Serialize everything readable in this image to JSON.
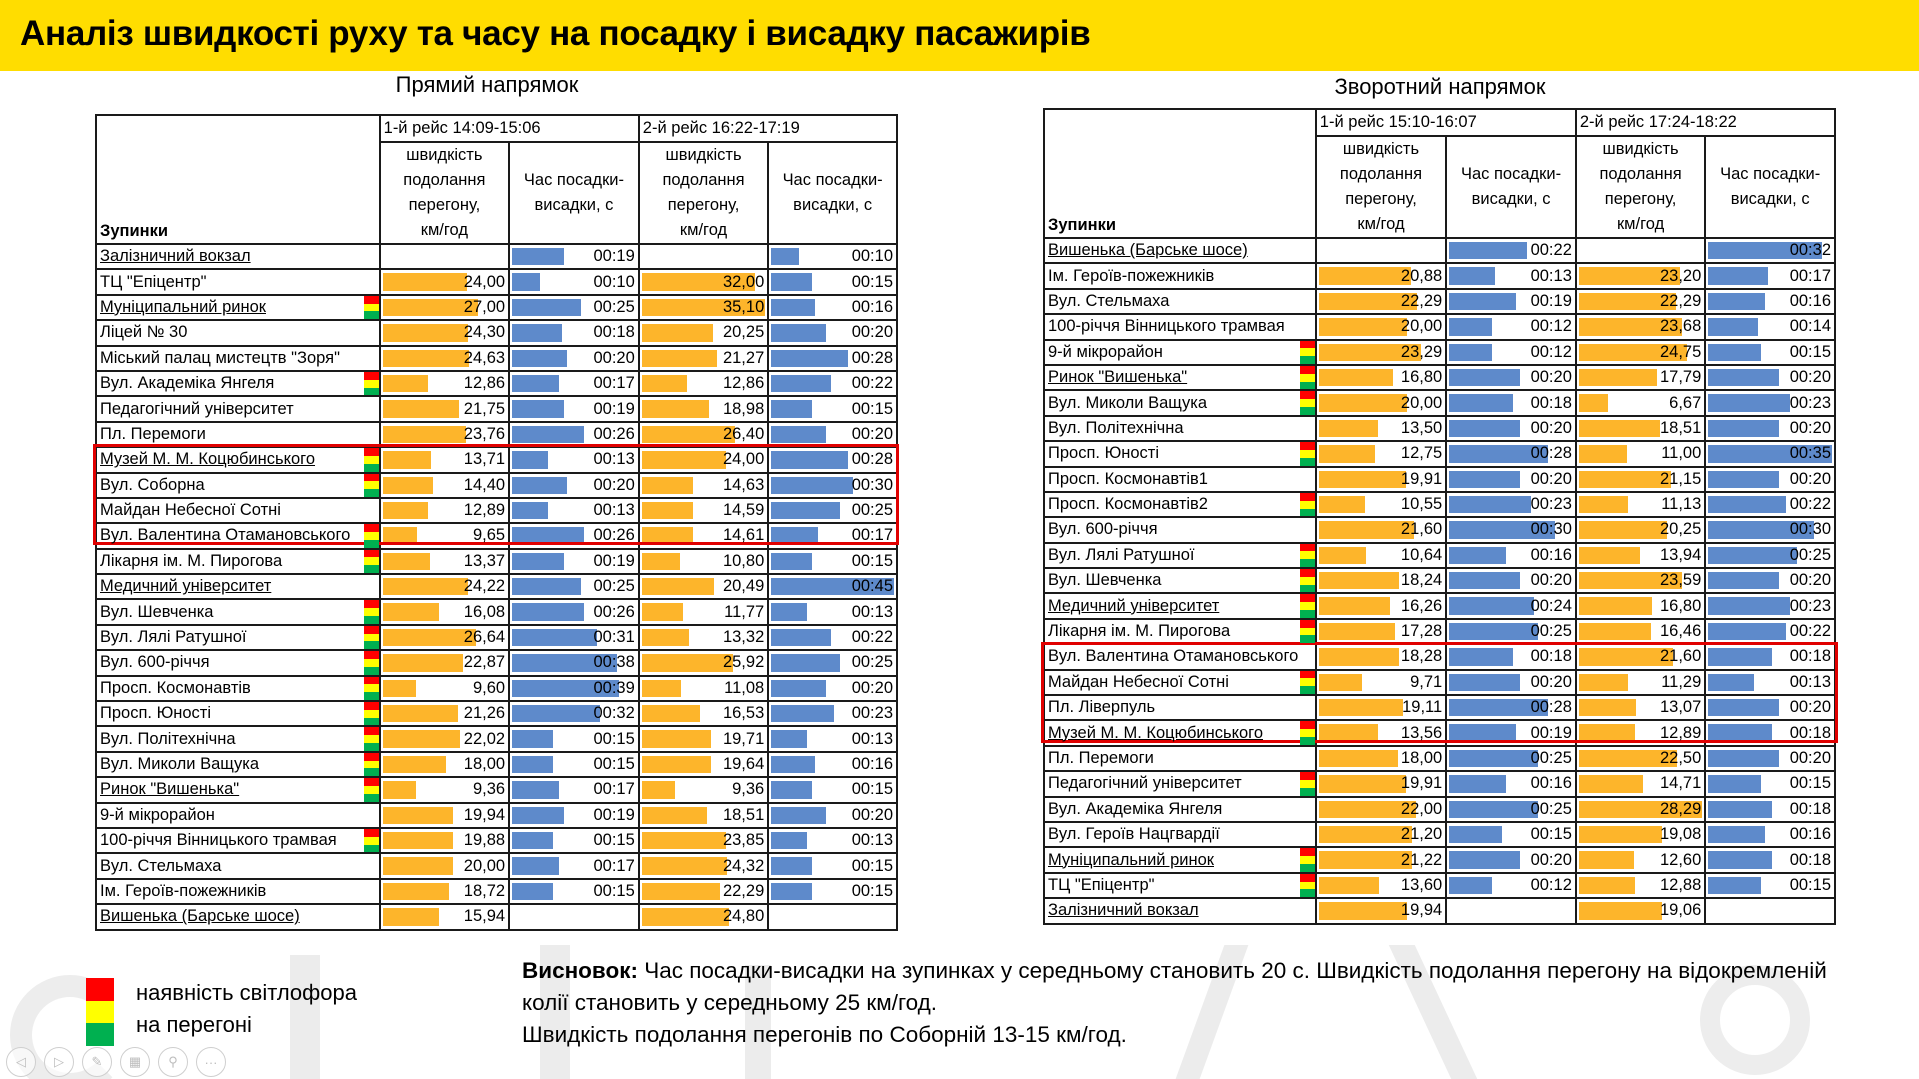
{
  "header": {
    "title": "Аналіз швидкості руху та часу на посадку і висадку пасажирів"
  },
  "colors": {
    "title_bg": "#FFDD00",
    "speed_bar": "#FDB52B",
    "time_bar": "#5E8ACB",
    "highlight_box": "#E00000",
    "traffic_red": "#FF0000",
    "traffic_yellow": "#FFFF00",
    "traffic_green": "#00B050"
  },
  "column_headers": {
    "stops": "Зупинки",
    "speed": [
      "швидкість",
      "подолання",
      "перегону,",
      "км/год"
    ],
    "time": [
      "Час посадки-",
      "висадки, с"
    ]
  },
  "forward": {
    "caption": "Прямий напрямок",
    "trip1": "1-й рейс 14:09-15:06",
    "trip2": "2-й рейс 16:22-17:19",
    "rows": [
      {
        "stop": "Залізничний вокзал",
        "u": true,
        "tl": false,
        "s1": "",
        "t1": "00:19",
        "s2": "",
        "t2": "00:10"
      },
      {
        "stop": "ТЦ \"Епіцентр\"",
        "u": false,
        "tl": false,
        "s1": "24,00",
        "t1": "00:10",
        "s2": "32,00",
        "t2": "00:15"
      },
      {
        "stop": "Муніципальний ринок",
        "u": true,
        "tl": true,
        "s1": "27,00",
        "t1": "00:25",
        "s2": "35,10",
        "t2": "00:16"
      },
      {
        "stop": "Ліцей № 30",
        "u": false,
        "tl": false,
        "s1": "24,30",
        "t1": "00:18",
        "s2": "20,25",
        "t2": "00:20"
      },
      {
        "stop": "Міський палац мистецтв \"Зоря\"",
        "u": false,
        "tl": false,
        "s1": "24,63",
        "t1": "00:20",
        "s2": "21,27",
        "t2": "00:28"
      },
      {
        "stop": "Вул. Академіка Янгеля",
        "u": false,
        "tl": true,
        "s1": "12,86",
        "t1": "00:17",
        "s2": "12,86",
        "t2": "00:22"
      },
      {
        "stop": "Педагогічний університет",
        "u": false,
        "tl": false,
        "s1": "21,75",
        "t1": "00:19",
        "s2": "18,98",
        "t2": "00:15"
      },
      {
        "stop": "Пл. Перемоги",
        "u": false,
        "tl": false,
        "s1": "23,76",
        "t1": "00:26",
        "s2": "26,40",
        "t2": "00:20"
      },
      {
        "stop": "Музей М. М. Коцюбинського",
        "u": true,
        "tl": true,
        "s1": "13,71",
        "t1": "00:13",
        "s2": "24,00",
        "t2": "00:28"
      },
      {
        "stop": "Вул. Соборна",
        "u": false,
        "tl": true,
        "s1": "14,40",
        "t1": "00:20",
        "s2": "14,63",
        "t2": "00:30"
      },
      {
        "stop": "Майдан Небесної Сотні",
        "u": false,
        "tl": false,
        "s1": "12,89",
        "t1": "00:13",
        "s2": "14,59",
        "t2": "00:25"
      },
      {
        "stop": "Вул. Валентина Отамановського",
        "u": false,
        "tl": true,
        "s1": "9,65",
        "t1": "00:26",
        "s2": "14,61",
        "t2": "00:17"
      },
      {
        "stop": "Лікарня ім. М. Пирогова",
        "u": false,
        "tl": true,
        "s1": "13,37",
        "t1": "00:19",
        "s2": "10,80",
        "t2": "00:15"
      },
      {
        "stop": "Медичний університет",
        "u": true,
        "tl": false,
        "s1": "24,22",
        "t1": "00:25",
        "s2": "20,49",
        "t2": "00:45"
      },
      {
        "stop": "Вул. Шевченка",
        "u": false,
        "tl": true,
        "s1": "16,08",
        "t1": "00:26",
        "s2": "11,77",
        "t2": "00:13"
      },
      {
        "stop": "Вул. Лялі Ратушної",
        "u": false,
        "tl": true,
        "s1": "26,64",
        "t1": "00:31",
        "s2": "13,32",
        "t2": "00:22"
      },
      {
        "stop": "Вул. 600-річчя",
        "u": false,
        "tl": true,
        "s1": "22,87",
        "t1": "00:38",
        "s2": "25,92",
        "t2": "00:25"
      },
      {
        "stop": "Просп. Космонавтів",
        "u": false,
        "tl": true,
        "s1": "9,60",
        "t1": "00:39",
        "s2": "11,08",
        "t2": "00:20"
      },
      {
        "stop": "Просп. Юності",
        "u": false,
        "tl": true,
        "s1": "21,26",
        "t1": "00:32",
        "s2": "16,53",
        "t2": "00:23"
      },
      {
        "stop": "Вул. Політехнічна",
        "u": false,
        "tl": true,
        "s1": "22,02",
        "t1": "00:15",
        "s2": "19,71",
        "t2": "00:13"
      },
      {
        "stop": "Вул. Миколи Ващука",
        "u": false,
        "tl": true,
        "s1": "18,00",
        "t1": "00:15",
        "s2": "19,64",
        "t2": "00:16"
      },
      {
        "stop": "Ринок \"Вишенька\"",
        "u": true,
        "tl": true,
        "s1": "9,36",
        "t1": "00:17",
        "s2": "9,36",
        "t2": "00:15"
      },
      {
        "stop": "9-й мікрорайон",
        "u": false,
        "tl": false,
        "s1": "19,94",
        "t1": "00:19",
        "s2": "18,51",
        "t2": "00:20"
      },
      {
        "stop": "100-річчя Вінницького трамвая",
        "u": false,
        "tl": true,
        "s1": "19,88",
        "t1": "00:15",
        "s2": "23,85",
        "t2": "00:13"
      },
      {
        "stop": "Вул. Стельмаха",
        "u": false,
        "tl": false,
        "s1": "20,00",
        "t1": "00:17",
        "s2": "24,32",
        "t2": "00:15"
      },
      {
        "stop": "Ім. Героїв-пожежників",
        "u": false,
        "tl": false,
        "s1": "18,72",
        "t1": "00:15",
        "s2": "22,29",
        "t2": "00:15"
      },
      {
        "stop": "Вишенька (Барське шосе)",
        "u": true,
        "tl": false,
        "s1": "15,94",
        "t1": "",
        "s2": "24,80",
        "t2": ""
      }
    ]
  },
  "reverse": {
    "caption": "Зворотний напрямок",
    "trip1": "1-й рейс 15:10-16:07",
    "trip2": "2-й рейс 17:24-18:22",
    "rows": [
      {
        "stop": "Вишенька (Барське шосе)",
        "u": true,
        "tl": false,
        "s1": "",
        "t1": "00:22",
        "s2": "",
        "t2": "00:32"
      },
      {
        "stop": "Ім. Героїв-пожежників",
        "u": false,
        "tl": false,
        "s1": "20,88",
        "t1": "00:13",
        "s2": "23,20",
        "t2": "00:17"
      },
      {
        "stop": "Вул. Стельмаха",
        "u": false,
        "tl": false,
        "s1": "22,29",
        "t1": "00:19",
        "s2": "22,29",
        "t2": "00:16"
      },
      {
        "stop": "100-річчя Вінницького трамвая",
        "u": false,
        "tl": false,
        "s1": "20,00",
        "t1": "00:12",
        "s2": "23,68",
        "t2": "00:14"
      },
      {
        "stop": "9-й мікрорайон",
        "u": false,
        "tl": true,
        "s1": "23,29",
        "t1": "00:12",
        "s2": "24,75",
        "t2": "00:15"
      },
      {
        "stop": "Ринок \"Вишенька\"",
        "u": true,
        "tl": true,
        "s1": "16,80",
        "t1": "00:20",
        "s2": "17,79",
        "t2": "00:20"
      },
      {
        "stop": "Вул. Миколи Ващука",
        "u": false,
        "tl": true,
        "s1": "20,00",
        "t1": "00:18",
        "s2": "6,67",
        "t2": "00:23"
      },
      {
        "stop": "Вул. Політехнічна",
        "u": false,
        "tl": false,
        "s1": "13,50",
        "t1": "00:20",
        "s2": "18,51",
        "t2": "00:20"
      },
      {
        "stop": "Просп. Юності",
        "u": false,
        "tl": true,
        "s1": "12,75",
        "t1": "00:28",
        "s2": "11,00",
        "t2": "00:35"
      },
      {
        "stop": "Просп. Космонавтів1",
        "u": false,
        "tl": false,
        "s1": "19,91",
        "t1": "00:20",
        "s2": "21,15",
        "t2": "00:20"
      },
      {
        "stop": "Просп. Космонавтів2",
        "u": false,
        "tl": true,
        "s1": "10,55",
        "t1": "00:23",
        "s2": "11,13",
        "t2": "00:22"
      },
      {
        "stop": "Вул. 600-річчя",
        "u": false,
        "tl": false,
        "s1": "21,60",
        "t1": "00:30",
        "s2": "20,25",
        "t2": "00:30"
      },
      {
        "stop": "Вул. Лялі Ратушної",
        "u": false,
        "tl": true,
        "s1": "10,64",
        "t1": "00:16",
        "s2": "13,94",
        "t2": "00:25"
      },
      {
        "stop": "Вул. Шевченка",
        "u": false,
        "tl": true,
        "s1": "18,24",
        "t1": "00:20",
        "s2": "23,59",
        "t2": "00:20"
      },
      {
        "stop": "Медичний університет",
        "u": true,
        "tl": true,
        "s1": "16,26",
        "t1": "00:24",
        "s2": "16,80",
        "t2": "00:23"
      },
      {
        "stop": "Лікарня ім. М. Пирогова",
        "u": false,
        "tl": true,
        "s1": "17,28",
        "t1": "00:25",
        "s2": "16,46",
        "t2": "00:22"
      },
      {
        "stop": "Вул. Валентина Отамановського",
        "u": false,
        "tl": false,
        "s1": "18,28",
        "t1": "00:18",
        "s2": "21,60",
        "t2": "00:18"
      },
      {
        "stop": "Майдан Небесної Сотні",
        "u": false,
        "tl": true,
        "s1": "9,71",
        "t1": "00:20",
        "s2": "11,29",
        "t2": "00:13"
      },
      {
        "stop": "Пл. Ліверпуль",
        "u": false,
        "tl": false,
        "s1": "19,11",
        "t1": "00:28",
        "s2": "13,07",
        "t2": "00:20"
      },
      {
        "stop": "Музей М. М. Коцюбинського",
        "u": true,
        "tl": true,
        "s1": "13,56",
        "t1": "00:19",
        "s2": "12,89",
        "t2": "00:18"
      },
      {
        "stop": "Пл. Перемоги",
        "u": false,
        "tl": false,
        "s1": "18,00",
        "t1": "00:25",
        "s2": "22,50",
        "t2": "00:20"
      },
      {
        "stop": "Педагогічний університет",
        "u": false,
        "tl": true,
        "s1": "19,91",
        "t1": "00:16",
        "s2": "14,71",
        "t2": "00:15"
      },
      {
        "stop": "Вул. Академіка Янгеля",
        "u": false,
        "tl": false,
        "s1": "22,00",
        "t1": "00:25",
        "s2": "28,29",
        "t2": "00:18"
      },
      {
        "stop": "Вул. Героїв Нацгвардії",
        "u": false,
        "tl": false,
        "s1": "21,20",
        "t1": "00:15",
        "s2": "19,08",
        "t2": "00:16"
      },
      {
        "stop": "Муніципальний ринок",
        "u": true,
        "tl": true,
        "s1": "21,22",
        "t1": "00:20",
        "s2": "12,60",
        "t2": "00:18"
      },
      {
        "stop": "ТЦ \"Епіцентр\"",
        "u": false,
        "tl": true,
        "s1": "13,60",
        "t1": "00:12",
        "s2": "12,88",
        "t2": "00:15"
      },
      {
        "stop": "Залізничний вокзал",
        "u": true,
        "tl": false,
        "s1": "19,94",
        "t1": "",
        "s2": "19,06",
        "t2": ""
      }
    ]
  },
  "legend": {
    "line1": "наявність світлофора",
    "line2": "на перегоні"
  },
  "conclusion": {
    "label": "Висновок:",
    "text1": " Час посадки-висадки на зупинках у середньому становить 20 с. Швидкість подолання перегону на відокремленій колії становить у середньому 25 км/год.",
    "text2": "Швидкість подолання перегонів по Соборній 13-15 км/год."
  },
  "slide_nav": [
    {
      "name": "previous-slide",
      "glyph": "◁"
    },
    {
      "name": "next-slide",
      "glyph": "▷"
    },
    {
      "name": "pen-tool",
      "glyph": "✎"
    },
    {
      "name": "slide-sorter",
      "glyph": "▦"
    },
    {
      "name": "zoom",
      "glyph": "⚲"
    },
    {
      "name": "more-options",
      "glyph": "···"
    }
  ]
}
